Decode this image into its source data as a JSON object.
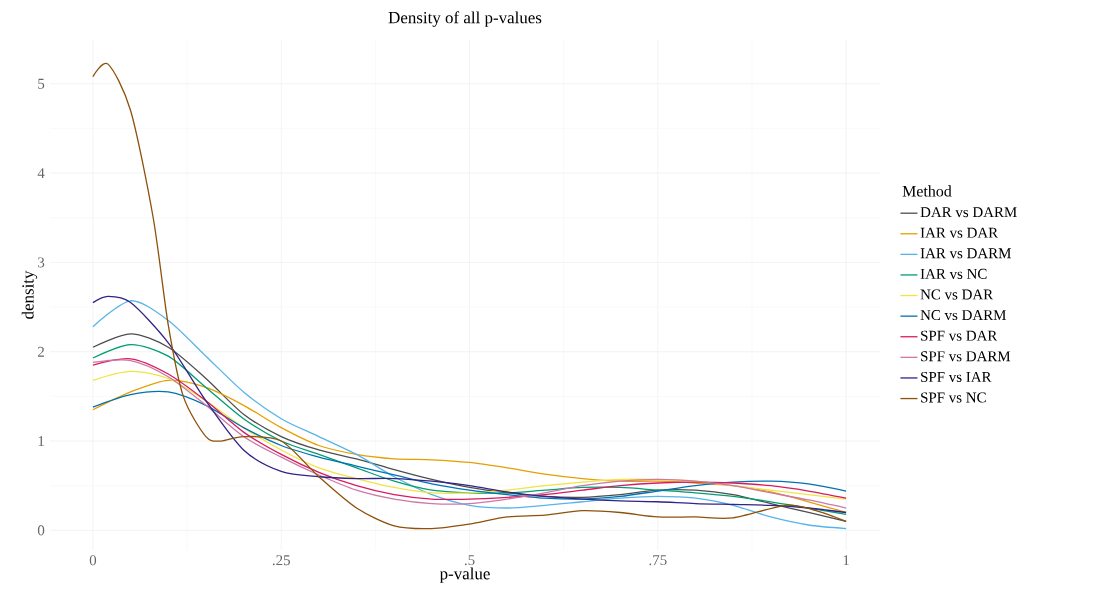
{
  "chart_data": {
    "type": "line",
    "title": "Density of all p-values",
    "xlabel": "p-value",
    "ylabel": "density",
    "legend_title": "Method",
    "x": [
      0,
      0.05,
      0.1,
      0.15,
      0.2,
      0.25,
      0.3,
      0.35,
      0.4,
      0.45,
      0.5,
      0.55,
      0.6,
      0.65,
      0.7,
      0.75,
      0.8,
      0.85,
      0.9,
      0.95,
      1
    ],
    "xlim": [
      -0.057,
      1.045
    ],
    "ylim": [
      -0.22,
      5.49
    ],
    "xticks": [
      0,
      {
        "value": 0.25,
        "label": ".25"
      },
      {
        "value": 0.5,
        "label": ".5"
      },
      {
        "value": 0.75,
        "label": ".75"
      },
      1
    ],
    "yticks": [
      0,
      1,
      2,
      3,
      4,
      5
    ],
    "grid": true,
    "legend": "right",
    "marker": "none",
    "line_style": "solid",
    "series": [
      {
        "name": "DAR vs DARM",
        "color": "#4d4d4d",
        "values": [
          2.05,
          2.2,
          2.05,
          1.7,
          1.3,
          1.05,
          0.9,
          0.8,
          0.68,
          0.57,
          0.48,
          0.42,
          0.38,
          0.37,
          0.4,
          0.45,
          0.45,
          0.4,
          0.3,
          0.2,
          0.1
        ]
      },
      {
        "name": "IAR vs DAR",
        "color": "#e69f00",
        "values": [
          1.35,
          1.55,
          1.68,
          1.6,
          1.4,
          1.15,
          0.95,
          0.85,
          0.8,
          0.79,
          0.76,
          0.7,
          0.63,
          0.58,
          0.55,
          0.55,
          0.53,
          0.5,
          0.43,
          0.32,
          0.2
        ]
      },
      {
        "name": "IAR vs DARM",
        "color": "#56b4e9",
        "values": [
          2.28,
          2.57,
          2.35,
          1.95,
          1.55,
          1.25,
          1.05,
          0.85,
          0.6,
          0.4,
          0.28,
          0.25,
          0.28,
          0.32,
          0.36,
          0.38,
          0.36,
          0.28,
          0.15,
          0.06,
          0.02
        ]
      },
      {
        "name": "IAR vs NC",
        "color": "#009e73",
        "values": [
          1.93,
          2.08,
          1.95,
          1.6,
          1.25,
          1.0,
          0.85,
          0.7,
          0.55,
          0.45,
          0.42,
          0.42,
          0.45,
          0.48,
          0.48,
          0.45,
          0.42,
          0.38,
          0.32,
          0.25,
          0.18
        ]
      },
      {
        "name": "NC vs DAR",
        "color": "#f0e442",
        "values": [
          1.68,
          1.78,
          1.7,
          1.45,
          1.15,
          0.9,
          0.7,
          0.58,
          0.48,
          0.42,
          0.42,
          0.45,
          0.5,
          0.54,
          0.57,
          0.57,
          0.55,
          0.5,
          0.45,
          0.4,
          0.35
        ]
      },
      {
        "name": "NC vs DARM",
        "color": "#0072b2",
        "values": [
          1.38,
          1.52,
          1.55,
          1.4,
          1.15,
          0.95,
          0.82,
          0.72,
          0.62,
          0.52,
          0.45,
          0.4,
          0.36,
          0.35,
          0.38,
          0.44,
          0.5,
          0.54,
          0.55,
          0.52,
          0.44
        ]
      },
      {
        "name": "SPF vs DAR",
        "color": "#d81b60",
        "values": [
          1.85,
          1.92,
          1.75,
          1.45,
          1.1,
          0.85,
          0.65,
          0.5,
          0.4,
          0.35,
          0.35,
          0.37,
          0.4,
          0.45,
          0.5,
          0.53,
          0.54,
          0.53,
          0.5,
          0.44,
          0.36
        ]
      },
      {
        "name": "SPF vs DARM",
        "color": "#cc79a7",
        "values": [
          1.88,
          1.9,
          1.72,
          1.4,
          1.05,
          0.82,
          0.62,
          0.45,
          0.35,
          0.3,
          0.3,
          0.35,
          0.42,
          0.5,
          0.55,
          0.57,
          0.55,
          0.5,
          0.42,
          0.34,
          0.25
        ]
      },
      {
        "name": "SPF vs IAR",
        "color": "#332288",
        "x": [
          0,
          0.02,
          0.05,
          0.1,
          0.15,
          0.2,
          0.25,
          0.3,
          0.35,
          0.4,
          0.45,
          0.5,
          0.55,
          0.6,
          0.65,
          0.7,
          0.75,
          0.8,
          0.85,
          0.9,
          0.95,
          1
        ],
        "values": [
          2.55,
          2.62,
          2.55,
          2.1,
          1.45,
          0.9,
          0.66,
          0.6,
          0.58,
          0.58,
          0.55,
          0.5,
          0.43,
          0.38,
          0.35,
          0.33,
          0.32,
          0.3,
          0.29,
          0.28,
          0.25,
          0.2
        ]
      },
      {
        "name": "SPF vs NC",
        "color": "#8c510a",
        "x": [
          0,
          0.02,
          0.05,
          0.08,
          0.1,
          0.12,
          0.15,
          0.17,
          0.2,
          0.25,
          0.3,
          0.35,
          0.4,
          0.45,
          0.5,
          0.55,
          0.6,
          0.65,
          0.7,
          0.75,
          0.8,
          0.85,
          0.92,
          0.96,
          1
        ],
        "values": [
          5.08,
          5.22,
          4.7,
          3.5,
          2.3,
          1.5,
          1.05,
          1.0,
          1.05,
          1.0,
          0.6,
          0.25,
          0.05,
          0.02,
          0.07,
          0.15,
          0.17,
          0.22,
          0.2,
          0.15,
          0.15,
          0.14,
          0.28,
          0.22,
          0.1
        ]
      }
    ]
  }
}
